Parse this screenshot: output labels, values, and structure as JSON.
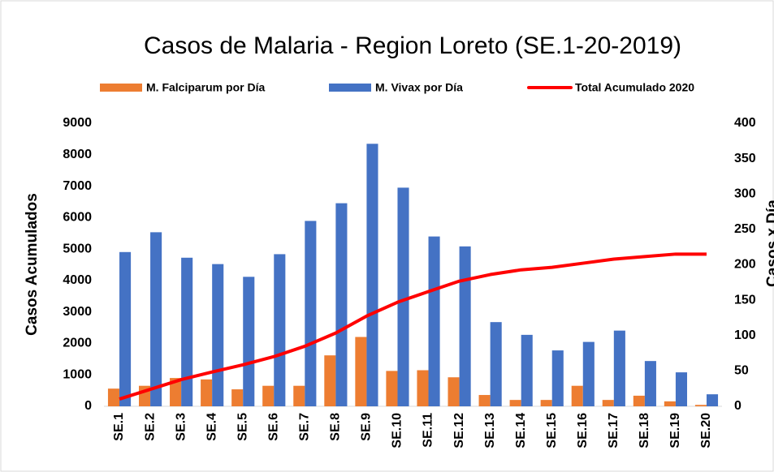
{
  "chart_data": {
    "type": "bar",
    "title": "Casos de Malaria - Region Loreto (SE.1-20-2019)",
    "y_label": "Casos Acumulados",
    "y2_label": "Casos x Día",
    "categories": [
      "SE.1",
      "SE.2",
      "SE.3",
      "SE.4",
      "SE.5",
      "SE.6",
      "SE.7",
      "SE.8",
      "SE.9",
      "SE.10",
      "SE.11",
      "SE.12",
      "SE.13",
      "SE.14",
      "SE.15",
      "SE.16",
      "SE.17",
      "SE.18",
      "SE.19",
      "SE.20"
    ],
    "series": [
      {
        "name": "M. Falciparum por Día",
        "color": "#ed7d31",
        "type": "bar",
        "axis": "y2",
        "values": [
          25,
          29,
          40,
          38,
          24,
          29,
          29,
          72,
          98,
          50,
          51,
          41,
          16,
          9,
          9,
          29,
          9,
          15,
          7,
          2
        ]
      },
      {
        "name": "M. Vivax por Día",
        "color": "#4472c4",
        "type": "bar",
        "axis": "y2",
        "values": [
          218,
          246,
          210,
          201,
          183,
          215,
          262,
          287,
          371,
          309,
          240,
          226,
          119,
          101,
          79,
          91,
          107,
          64,
          48,
          17
        ]
      },
      {
        "name": "Total Acumulado 2020",
        "color": "#ff0000",
        "type": "line",
        "axis": "y",
        "values": [
          230,
          540,
          850,
          1090,
          1320,
          1580,
          1910,
          2330,
          2870,
          3310,
          3650,
          3980,
          4190,
          4340,
          4420,
          4550,
          4680,
          4760,
          4840,
          4840
        ]
      }
    ],
    "ylim": [
      0,
      9000
    ],
    "yticks": [
      0,
      1000,
      2000,
      3000,
      4000,
      5000,
      6000,
      7000,
      8000,
      9000
    ],
    "y2lim": [
      0,
      400
    ],
    "y2ticks": [
      0,
      50,
      100,
      150,
      200,
      250,
      300,
      350,
      400
    ],
    "legend": "top",
    "grid": false
  }
}
